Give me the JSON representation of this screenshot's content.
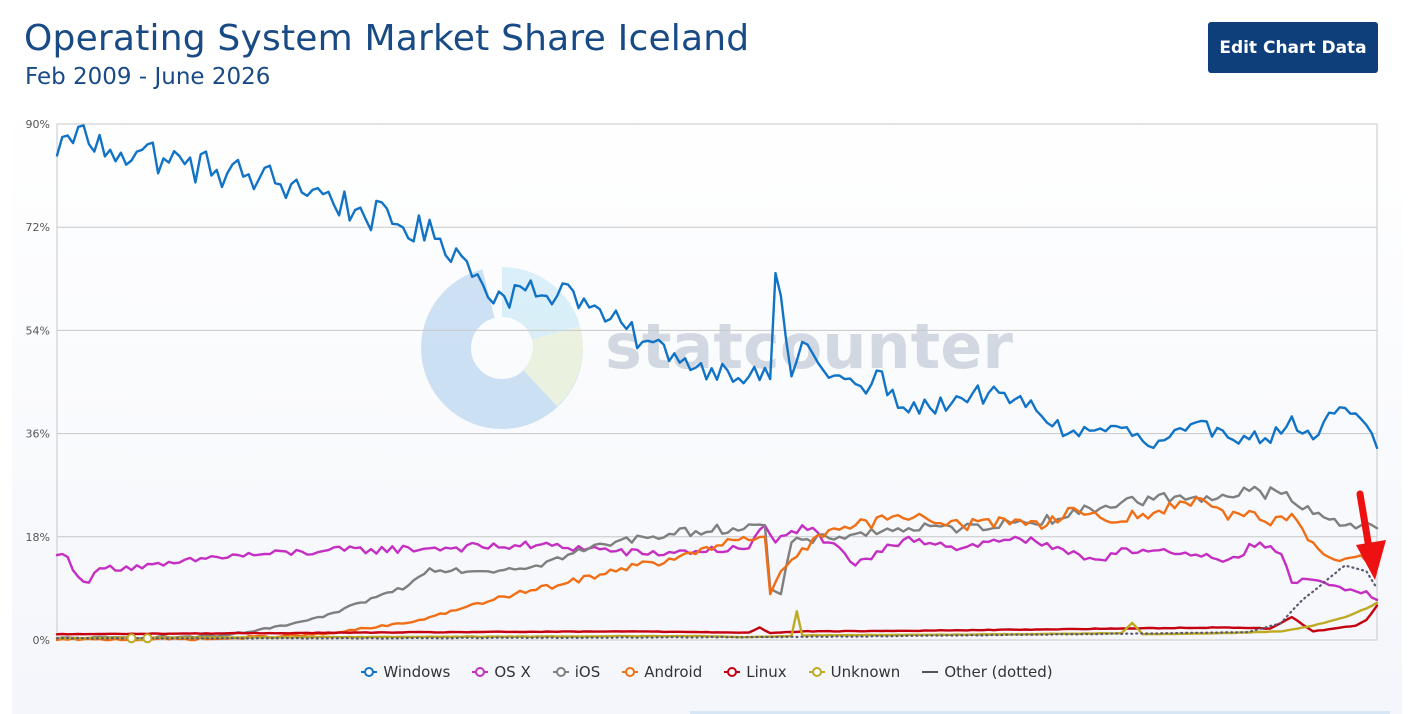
{
  "header": {
    "title": "Operating System Market Share Iceland",
    "subtitle": "Feb 2009 - June 2026",
    "edit_button": "Edit Chart Data"
  },
  "watermark": "statcounter",
  "chart_data": {
    "type": "line",
    "x_start": "2009-02",
    "x_end": "2026-06",
    "ylim": [
      0,
      90
    ],
    "y_ticks": [
      "0%",
      "18%",
      "36%",
      "54%",
      "72%",
      "90%"
    ],
    "grid": true,
    "legend_position": "bottom",
    "series": [
      {
        "name": "Windows",
        "color": "#1173c6",
        "style": "solid",
        "keypoints": [
          [
            0,
            84.5
          ],
          [
            2,
            88
          ],
          [
            4,
            89.5
          ],
          [
            6,
            86.5
          ],
          [
            10,
            85.5
          ],
          [
            12,
            85
          ],
          [
            16,
            85.5
          ],
          [
            20,
            84
          ],
          [
            24,
            83
          ],
          [
            30,
            82
          ],
          [
            38,
            80.5
          ],
          [
            44,
            79.5
          ],
          [
            48,
            78.5
          ],
          [
            56,
            75
          ],
          [
            64,
            72.5
          ],
          [
            72,
            70
          ],
          [
            76,
            67
          ],
          [
            80,
            62
          ],
          [
            84,
            60
          ],
          [
            88,
            61
          ],
          [
            92,
            60
          ],
          [
            96,
            62
          ],
          [
            100,
            58
          ],
          [
            104,
            56
          ],
          [
            110,
            52
          ],
          [
            116,
            50
          ],
          [
            120,
            47.5
          ],
          [
            126,
            47
          ],
          [
            134,
            45.5
          ],
          [
            135,
            64
          ],
          [
            136,
            60
          ],
          [
            138,
            46
          ],
          [
            140,
            52
          ],
          [
            144,
            47
          ],
          [
            148,
            45.5
          ],
          [
            152,
            43
          ],
          [
            154,
            47
          ],
          [
            158,
            40.5
          ],
          [
            164,
            40.5
          ],
          [
            172,
            43
          ],
          [
            180,
            42
          ],
          [
            184,
            40
          ],
          [
            190,
            36
          ],
          [
            194,
            36.5
          ],
          [
            200,
            37
          ],
          [
            206,
            33.5
          ],
          [
            212,
            36.5
          ],
          [
            218,
            37
          ],
          [
            224,
            35
          ],
          [
            230,
            36
          ],
          [
            232,
            39
          ],
          [
            234,
            36
          ],
          [
            236,
            35
          ],
          [
            240,
            39.5
          ],
          [
            244,
            39.5
          ],
          [
            246,
            37.5
          ],
          [
            248,
            33.5
          ]
        ]
      },
      {
        "name": "OS X",
        "color": "#c42ec2",
        "style": "solid",
        "keypoints": [
          [
            0,
            14.8
          ],
          [
            2,
            14.5
          ],
          [
            4,
            11
          ],
          [
            6,
            10
          ],
          [
            8,
            12.5
          ],
          [
            20,
            13
          ],
          [
            30,
            14.5
          ],
          [
            50,
            15.5
          ],
          [
            70,
            16
          ],
          [
            90,
            16.5
          ],
          [
            100,
            16
          ],
          [
            110,
            15
          ],
          [
            120,
            15.5
          ],
          [
            130,
            16
          ],
          [
            133,
            20
          ],
          [
            135,
            17
          ],
          [
            138,
            19
          ],
          [
            140,
            20
          ],
          [
            145,
            17
          ],
          [
            150,
            13
          ],
          [
            160,
            18
          ],
          [
            170,
            16
          ],
          [
            180,
            18
          ],
          [
            190,
            15
          ],
          [
            196,
            14
          ],
          [
            200,
            16
          ],
          [
            210,
            15
          ],
          [
            220,
            14
          ],
          [
            226,
            17
          ],
          [
            230,
            15
          ],
          [
            232,
            10
          ],
          [
            236,
            10.5
          ],
          [
            240,
            9.5
          ],
          [
            244,
            8.5
          ],
          [
            246,
            8.5
          ],
          [
            248,
            7
          ]
        ]
      },
      {
        "name": "iOS",
        "color": "#7f7f7f",
        "style": "solid",
        "keypoints": [
          [
            0,
            0.3
          ],
          [
            30,
            0.6
          ],
          [
            40,
            2
          ],
          [
            50,
            4
          ],
          [
            60,
            7.5
          ],
          [
            66,
            9.5
          ],
          [
            70,
            12.5
          ],
          [
            80,
            12
          ],
          [
            90,
            13
          ],
          [
            100,
            16
          ],
          [
            110,
            18
          ],
          [
            120,
            19
          ],
          [
            133,
            20
          ],
          [
            134,
            9
          ],
          [
            136,
            8
          ],
          [
            138,
            17
          ],
          [
            150,
            18.5
          ],
          [
            160,
            19.5
          ],
          [
            170,
            19.5
          ],
          [
            180,
            20.5
          ],
          [
            190,
            21.5
          ],
          [
            194,
            23
          ],
          [
            200,
            24
          ],
          [
            210,
            25
          ],
          [
            220,
            25
          ],
          [
            224,
            26
          ],
          [
            230,
            25.5
          ],
          [
            236,
            22
          ],
          [
            242,
            20
          ],
          [
            246,
            20.5
          ],
          [
            248,
            19.5
          ]
        ]
      },
      {
        "name": "Android",
        "color": "#f06e15",
        "style": "solid",
        "keypoints": [
          [
            0,
            0
          ],
          [
            30,
            0.2
          ],
          [
            50,
            1
          ],
          [
            66,
            3
          ],
          [
            76,
            5.5
          ],
          [
            86,
            8
          ],
          [
            96,
            10
          ],
          [
            106,
            12.5
          ],
          [
            116,
            14
          ],
          [
            124,
            16.5
          ],
          [
            133,
            18
          ],
          [
            134,
            8
          ],
          [
            136,
            12
          ],
          [
            140,
            16
          ],
          [
            144,
            18
          ],
          [
            150,
            20
          ],
          [
            156,
            21
          ],
          [
            162,
            22
          ],
          [
            170,
            20
          ],
          [
            180,
            21
          ],
          [
            186,
            20
          ],
          [
            190,
            23
          ],
          [
            194,
            22
          ],
          [
            198,
            20.5
          ],
          [
            204,
            22
          ],
          [
            210,
            23
          ],
          [
            216,
            24
          ],
          [
            220,
            21
          ],
          [
            224,
            22.5
          ],
          [
            228,
            20
          ],
          [
            232,
            22
          ],
          [
            236,
            17
          ],
          [
            240,
            14
          ],
          [
            244,
            14.5
          ],
          [
            248,
            13
          ]
        ]
      },
      {
        "name": "Linux",
        "color": "#c5000f",
        "style": "solid",
        "keypoints": [
          [
            0,
            1
          ],
          [
            40,
            1.2
          ],
          [
            80,
            1.4
          ],
          [
            110,
            1.5
          ],
          [
            130,
            1.3
          ],
          [
            132,
            2.2
          ],
          [
            134,
            1.2
          ],
          [
            140,
            1.5
          ],
          [
            160,
            1.6
          ],
          [
            180,
            1.8
          ],
          [
            200,
            2
          ],
          [
            220,
            2.2
          ],
          [
            228,
            2
          ],
          [
            232,
            4
          ],
          [
            236,
            1.5
          ],
          [
            240,
            2
          ],
          [
            244,
            2.5
          ],
          [
            246,
            3.5
          ],
          [
            248,
            6
          ]
        ]
      },
      {
        "name": "Unknown",
        "color": "#bdaa22",
        "style": "solid",
        "keypoints": [
          [
            0,
            0.3
          ],
          [
            14,
            0.4
          ],
          [
            16,
            0
          ],
          [
            18,
            0.4
          ],
          [
            50,
            0.5
          ],
          [
            90,
            0.6
          ],
          [
            120,
            0.7
          ],
          [
            130,
            0.5
          ],
          [
            138,
            0.7
          ],
          [
            139,
            5
          ],
          [
            140,
            0.8
          ],
          [
            160,
            0.9
          ],
          [
            180,
            1
          ],
          [
            200,
            1.2
          ],
          [
            202,
            3
          ],
          [
            204,
            1
          ],
          [
            220,
            1.2
          ],
          [
            230,
            1.5
          ],
          [
            236,
            2.5
          ],
          [
            242,
            4
          ],
          [
            246,
            5.5
          ],
          [
            248,
            6.5
          ]
        ]
      },
      {
        "name": "Other",
        "color": "#5a5a6e",
        "style": "dotted",
        "keypoints": [
          [
            0,
            0.3
          ],
          [
            60,
            0.3
          ],
          [
            100,
            0.4
          ],
          [
            130,
            0.5
          ],
          [
            150,
            0.6
          ],
          [
            170,
            0.8
          ],
          [
            190,
            1
          ],
          [
            210,
            1.2
          ],
          [
            224,
            1.4
          ],
          [
            230,
            3
          ],
          [
            234,
            7
          ],
          [
            238,
            10
          ],
          [
            242,
            13
          ],
          [
            246,
            12
          ],
          [
            248,
            9
          ]
        ]
      }
    ]
  },
  "legend": {
    "items": [
      {
        "label": "Windows",
        "color": "#1173c6"
      },
      {
        "label": "OS X",
        "color": "#c42ec2"
      },
      {
        "label": "iOS",
        "color": "#7f7f7f"
      },
      {
        "label": "Android",
        "color": "#f06e15"
      },
      {
        "label": "Linux",
        "color": "#c5000f"
      },
      {
        "label": "Unknown",
        "color": "#bdaa22"
      },
      {
        "label": "Other (dotted)",
        "color": "#555555"
      }
    ]
  },
  "annotation": {
    "arrow_color": "#ee1111"
  }
}
